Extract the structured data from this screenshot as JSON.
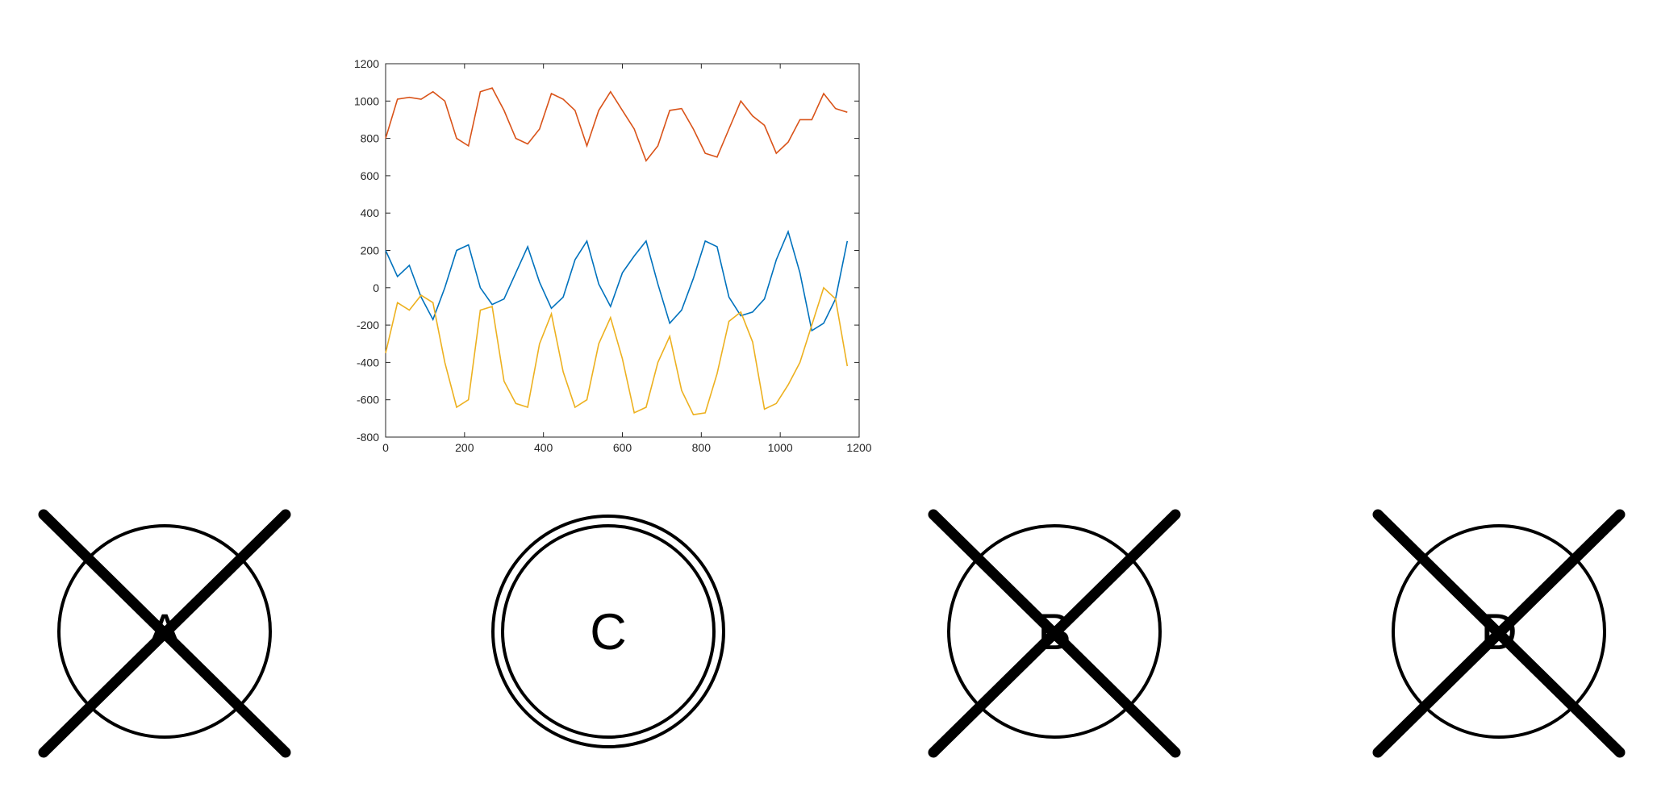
{
  "chart_data": {
    "type": "line",
    "x": [
      0,
      30,
      60,
      90,
      120,
      150,
      180,
      210,
      240,
      270,
      300,
      330,
      360,
      390,
      420,
      450,
      480,
      510,
      540,
      570,
      600,
      630,
      660,
      690,
      720,
      750,
      780,
      810,
      840,
      870,
      900,
      930,
      960,
      990,
      1020,
      1050,
      1080,
      1110,
      1140,
      1170
    ],
    "series": [
      {
        "color": "#d95319",
        "values": [
          800,
          1010,
          1020,
          1010,
          1050,
          1000,
          800,
          760,
          1050,
          1070,
          950,
          800,
          770,
          850,
          1040,
          1010,
          950,
          760,
          950,
          1050,
          950,
          850,
          680,
          760,
          950,
          960,
          850,
          720,
          700,
          850,
          1000,
          920,
          870,
          720,
          780,
          900,
          900,
          1040,
          960,
          940
        ]
      },
      {
        "color": "#0072bd",
        "values": [
          200,
          60,
          120,
          -50,
          -170,
          0,
          200,
          230,
          0,
          -90,
          -60,
          80,
          220,
          30,
          -110,
          -50,
          150,
          250,
          20,
          -100,
          80,
          170,
          250,
          20,
          -190,
          -120,
          50,
          250,
          220,
          -50,
          -150,
          -130,
          -60,
          150,
          300,
          80,
          -230,
          -190,
          -60,
          250
        ]
      },
      {
        "color": "#edb120",
        "values": [
          -350,
          -80,
          -120,
          -40,
          -80,
          -400,
          -640,
          -600,
          -120,
          -100,
          -500,
          -620,
          -640,
          -300,
          -140,
          -450,
          -640,
          -600,
          -300,
          -160,
          -380,
          -670,
          -640,
          -400,
          -260,
          -550,
          -680,
          -670,
          -460,
          -180,
          -130,
          -290,
          -650,
          -620,
          -520,
          -400,
          -200,
          0,
          -60,
          -420
        ]
      }
    ],
    "xlim": [
      0,
      1200
    ],
    "xticks": [
      0,
      200,
      400,
      600,
      800,
      1000,
      1200
    ],
    "ylim": [
      -800,
      1200
    ],
    "yticks": [
      -800,
      -600,
      -400,
      -200,
      0,
      200,
      400,
      600,
      800,
      1000,
      1200
    ]
  },
  "options": [
    {
      "label": "A",
      "crossed": true
    },
    {
      "label": "C",
      "crossed": false
    },
    {
      "label": "B",
      "crossed": true
    },
    {
      "label": "D",
      "crossed": true
    }
  ]
}
